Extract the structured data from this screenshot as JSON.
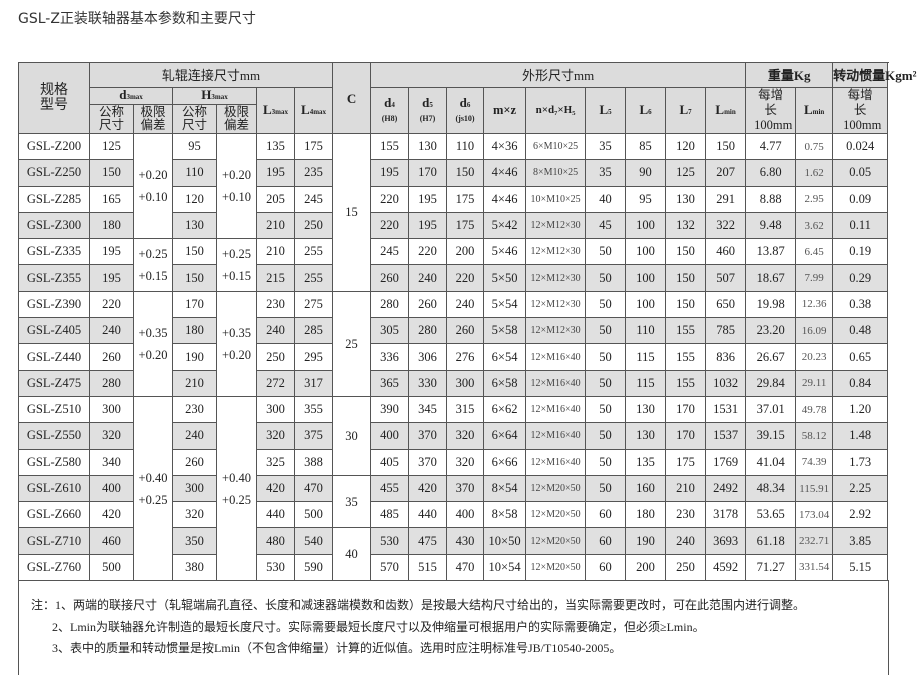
{
  "title": "GSL-Z正装联轴器基本参数和主要尺寸",
  "header": {
    "model": "规格型号",
    "roll_group": "轧辊连接尺寸mm",
    "c": "C",
    "outer_group": "外形尺寸mm",
    "weight_group": "重量Kg",
    "inertia_group": "转动惯量Kgm²",
    "d3": {
      "main": "d",
      "sub": "3max"
    },
    "h3": {
      "main": "H",
      "sub": "3max"
    },
    "l3": {
      "main": "L",
      "sub": "3max"
    },
    "l4": {
      "main": "L",
      "sub": "4max"
    },
    "nominal": "公称尺寸",
    "tolerance": "极限偏差",
    "d4": {
      "main": "d",
      "sub": "4",
      "fit": "(H8)"
    },
    "d5": {
      "main": "d",
      "sub": "5",
      "fit": "(H7)"
    },
    "d6": {
      "main": "d",
      "sub": "6",
      "fit": "(js10)"
    },
    "mz": "m×z",
    "nd7h5": "n×d₇×H₅",
    "l5": {
      "main": "L",
      "sub": "5"
    },
    "l6": {
      "main": "L",
      "sub": "6"
    },
    "l7": {
      "main": "L",
      "sub": "7"
    },
    "lmin": {
      "main": "L",
      "sub": "min"
    },
    "per100": "每增长100mm"
  },
  "rows": [
    [
      "GSL-Z200",
      "125",
      "95",
      "135",
      "175",
      "155",
      "130",
      "110",
      "4×36",
      "6×M10×25",
      "35",
      "85",
      "120",
      "150",
      "4.77",
      "0.75",
      "0.024"
    ],
    [
      "GSL-Z250",
      "150",
      "110",
      "195",
      "235",
      "195",
      "170",
      "150",
      "4×46",
      "8×M10×25",
      "35",
      "90",
      "125",
      "207",
      "6.80",
      "1.62",
      "0.05"
    ],
    [
      "GSL-Z285",
      "165",
      "120",
      "205",
      "245",
      "220",
      "195",
      "175",
      "4×46",
      "10×M10×25",
      "40",
      "95",
      "130",
      "291",
      "8.88",
      "2.95",
      "0.09"
    ],
    [
      "GSL-Z300",
      "180",
      "130",
      "210",
      "250",
      "220",
      "195",
      "175",
      "5×42",
      "12×M12×30",
      "45",
      "100",
      "132",
      "322",
      "9.48",
      "3.62",
      "0.11"
    ],
    [
      "GSL-Z335",
      "195",
      "150",
      "210",
      "255",
      "245",
      "220",
      "200",
      "5×46",
      "12×M12×30",
      "50",
      "100",
      "150",
      "460",
      "13.87",
      "6.45",
      "0.19"
    ],
    [
      "GSL-Z355",
      "195",
      "150",
      "215",
      "255",
      "260",
      "240",
      "220",
      "5×50",
      "12×M12×30",
      "50",
      "100",
      "150",
      "507",
      "18.67",
      "7.99",
      "0.29"
    ],
    [
      "GSL-Z390",
      "220",
      "170",
      "230",
      "275",
      "280",
      "260",
      "240",
      "5×54",
      "12×M12×30",
      "50",
      "100",
      "150",
      "650",
      "19.98",
      "12.36",
      "0.38"
    ],
    [
      "GSL-Z405",
      "240",
      "180",
      "240",
      "285",
      "305",
      "280",
      "260",
      "5×58",
      "12×M12×30",
      "50",
      "110",
      "155",
      "785",
      "23.20",
      "16.09",
      "0.48"
    ],
    [
      "GSL-Z440",
      "260",
      "190",
      "250",
      "295",
      "336",
      "306",
      "276",
      "6×54",
      "12×M16×40",
      "50",
      "115",
      "155",
      "836",
      "26.67",
      "20.23",
      "0.65"
    ],
    [
      "GSL-Z475",
      "280",
      "210",
      "272",
      "317",
      "365",
      "330",
      "300",
      "6×58",
      "12×M16×40",
      "50",
      "115",
      "155",
      "1032",
      "29.84",
      "29.11",
      "0.84"
    ],
    [
      "GSL-Z510",
      "300",
      "230",
      "300",
      "355",
      "390",
      "345",
      "315",
      "6×62",
      "12×M16×40",
      "50",
      "130",
      "170",
      "1531",
      "37.01",
      "49.78",
      "1.20"
    ],
    [
      "GSL-Z550",
      "320",
      "240",
      "320",
      "375",
      "400",
      "370",
      "320",
      "6×64",
      "12×M16×40",
      "50",
      "130",
      "170",
      "1537",
      "39.15",
      "58.12",
      "1.48"
    ],
    [
      "GSL-Z580",
      "340",
      "260",
      "325",
      "388",
      "405",
      "370",
      "320",
      "6×66",
      "12×M16×40",
      "50",
      "135",
      "175",
      "1769",
      "41.04",
      "74.39",
      "1.73"
    ],
    [
      "GSL-Z610",
      "400",
      "300",
      "420",
      "470",
      "455",
      "420",
      "370",
      "8×54",
      "12×M20×50",
      "50",
      "160",
      "210",
      "2492",
      "48.34",
      "115.91",
      "2.25"
    ],
    [
      "GSL-Z660",
      "420",
      "320",
      "440",
      "500",
      "485",
      "440",
      "400",
      "8×58",
      "12×M20×50",
      "60",
      "180",
      "230",
      "3178",
      "53.65",
      "173.04",
      "2.92"
    ],
    [
      "GSL-Z710",
      "460",
      "350",
      "480",
      "540",
      "530",
      "475",
      "430",
      "10×50",
      "12×M20×50",
      "60",
      "190",
      "240",
      "3693",
      "61.18",
      "232.71",
      "3.85"
    ],
    [
      "GSL-Z760",
      "500",
      "380",
      "530",
      "590",
      "570",
      "515",
      "470",
      "10×54",
      "12×M20×50",
      "60",
      "200",
      "250",
      "4592",
      "71.27",
      "331.54",
      "5.15"
    ]
  ],
  "tolerance_groups": [
    {
      "start": 0,
      "span": 4,
      "upper": "+0.20",
      "lower": "+0.10"
    },
    {
      "start": 4,
      "span": 2,
      "upper": "+0.25",
      "lower": "+0.15"
    },
    {
      "start": 6,
      "span": 4,
      "upper": "+0.35",
      "lower": "+0.20"
    },
    {
      "start": 10,
      "span": 7,
      "upper": "+0.40",
      "lower": "+0.25"
    }
  ],
  "c_groups": [
    {
      "start": 0,
      "span": 6,
      "value": "15"
    },
    {
      "start": 6,
      "span": 4,
      "value": "25"
    },
    {
      "start": 10,
      "span": 3,
      "value": "30"
    },
    {
      "start": 13,
      "span": 2,
      "value": "35"
    },
    {
      "start": 15,
      "span": 2,
      "value": "40"
    }
  ],
  "notes": [
    "注：1、两端的联接尺寸（轧辊端扁孔直径、长度和减速器端模数和齿数）是按最大结构尺寸给出的，当实际需要更改时，可在此范围内进行调整。",
    "2、Lmin为联轴器允许制造的最短长度尺寸。实际需要最短长度尺寸以及伸缩量可根据用户的实际需要确定，但必须≥Lmin。",
    "3、表中的质量和转动惯量是按Lmin（不包含伸缩量）计算的近似值。选用时应注明标准号JB/T10540-2005。"
  ]
}
